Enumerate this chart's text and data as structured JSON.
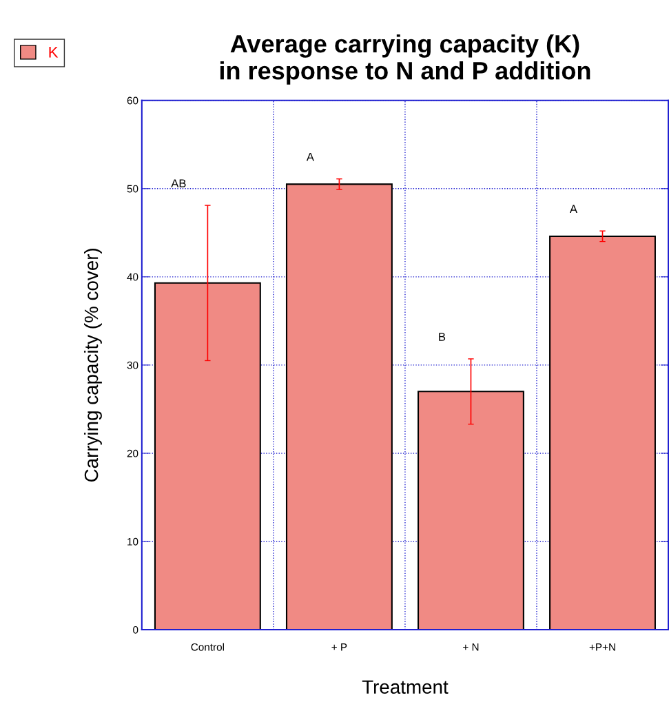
{
  "chart_data": {
    "type": "bar",
    "title": "Average carrying capacity (K)\nin response to N and P addition",
    "xlabel": "Treatment",
    "ylabel": "Carrying capacity (% cover)",
    "categories": [
      "Control",
      "+ P",
      "+ N",
      "+P+N"
    ],
    "series": [
      {
        "name": "K",
        "color": "#f08a84",
        "values": [
          39.3,
          50.5,
          27.0,
          44.6
        ],
        "errors": [
          8.8,
          0.6,
          3.7,
          0.6
        ]
      }
    ],
    "ylim": [
      0,
      60
    ],
    "yticks": [
      0,
      10,
      20,
      30,
      40,
      50,
      60
    ],
    "grid": true,
    "legend": "top left",
    "annotations": [
      "AB",
      "A",
      "B",
      "A"
    ]
  }
}
